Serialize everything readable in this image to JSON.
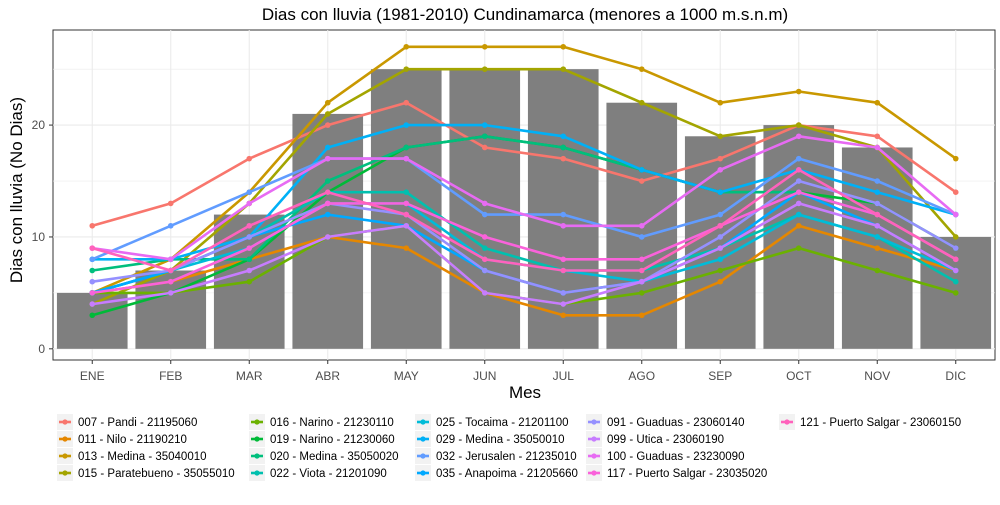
{
  "chart_data": {
    "type": "line",
    "title": "Dias con lluvia (1981-2010) Cundinamarca (menores a 1000 m.s.n.m)",
    "xlabel": "Mes",
    "ylabel": "Dias con lluvia (No Dias)",
    "categories": [
      "ENE",
      "FEB",
      "MAR",
      "ABR",
      "MAY",
      "JUN",
      "JUL",
      "AGO",
      "SEP",
      "OCT",
      "NOV",
      "DIC"
    ],
    "yticks": [
      0,
      10,
      20
    ],
    "ylim": [
      -1,
      28.5
    ],
    "grid": true,
    "legend_position": "bottom",
    "bars": {
      "color": "#7f7f7f",
      "values": [
        5,
        7,
        12,
        21,
        25,
        25,
        25,
        22,
        19,
        20,
        18,
        10
      ]
    },
    "series": [
      {
        "name": "007 - Pandi - 21195060",
        "color": "#F8766D",
        "values": [
          11,
          13,
          17,
          20,
          22,
          18,
          17,
          15,
          17,
          20,
          19,
          14
        ]
      },
      {
        "name": "011 - Nilo - 21190210",
        "color": "#E58700",
        "values": [
          5,
          6,
          8,
          10,
          9,
          5,
          3,
          3,
          6,
          11,
          9,
          7
        ]
      },
      {
        "name": "013 - Medina - 35040010",
        "color": "#C99800",
        "values": [
          5,
          8,
          14,
          22,
          27,
          27,
          27,
          25,
          22,
          23,
          22,
          17
        ]
      },
      {
        "name": "015 - Paratebueno - 35055010",
        "color": "#A3A500",
        "values": [
          4,
          7,
          13,
          21,
          25,
          25,
          25,
          22,
          19,
          20,
          18,
          10
        ]
      },
      {
        "name": "016 - Narino - 21230110",
        "color": "#6BB100",
        "values": [
          5,
          5,
          6,
          10,
          11,
          5,
          4,
          5,
          7,
          9,
          7,
          5
        ]
      },
      {
        "name": "019 - Narino - 21230060",
        "color": "#00BA38",
        "values": [
          3,
          5,
          8,
          14,
          18,
          19,
          18,
          16,
          14,
          14,
          13,
          9
        ]
      },
      {
        "name": "020 - Medina - 35050020",
        "color": "#00BF7D",
        "values": [
          7,
          8,
          8,
          15,
          18,
          19,
          18,
          16,
          14,
          14,
          12,
          8
        ]
      },
      {
        "name": "022 - Viota - 21201090",
        "color": "#00C0AF",
        "values": [
          5,
          7,
          10,
          14,
          14,
          9,
          7,
          7,
          9,
          12,
          10,
          6
        ]
      },
      {
        "name": "025 - Tocaima - 21201100",
        "color": "#00BCD8",
        "values": [
          5,
          7,
          9,
          13,
          13,
          8,
          7,
          6,
          8,
          12,
          10,
          7
        ]
      },
      {
        "name": "029 - Medina - 35050010",
        "color": "#00B0F6",
        "values": [
          8,
          8,
          10,
          18,
          20,
          20,
          19,
          16,
          14,
          16,
          14,
          12
        ]
      },
      {
        "name": "032 - Jerusalen - 21235010",
        "color": "#619CFF",
        "values": [
          8,
          11,
          14,
          17,
          17,
          12,
          12,
          10,
          12,
          17,
          15,
          12
        ]
      },
      {
        "name": "035 - Anapoima - 21205660",
        "color": "#00A9FF",
        "values": [
          5,
          7,
          10,
          12,
          11,
          7,
          5,
          6,
          9,
          14,
          11,
          7
        ]
      },
      {
        "name": "091 - Guaduas - 23060140",
        "color": "#9590FF",
        "values": [
          6,
          7,
          10,
          13,
          12,
          7,
          5,
          6,
          10,
          15,
          13,
          9
        ]
      },
      {
        "name": "099 - Utica - 23060190",
        "color": "#C77CFF",
        "values": [
          4,
          5,
          7,
          10,
          11,
          5,
          4,
          6,
          9,
          13,
          11,
          7
        ]
      },
      {
        "name": "100 - Guaduas - 23230090",
        "color": "#E76BF3",
        "values": [
          9,
          8,
          13,
          17,
          17,
          13,
          11,
          11,
          16,
          19,
          18,
          12
        ]
      },
      {
        "name": "117 - Puerto Salgar - 23035020",
        "color": "#FA62DB",
        "values": [
          5,
          6,
          9,
          13,
          13,
          10,
          8,
          8,
          11,
          14,
          12,
          8
        ]
      },
      {
        "name": "121 - Puerto Salgar - 23060150",
        "color": "#FF62BC",
        "values": [
          9,
          7,
          11,
          14,
          12,
          8,
          7,
          7,
          11,
          16,
          12,
          8
        ]
      }
    ]
  }
}
